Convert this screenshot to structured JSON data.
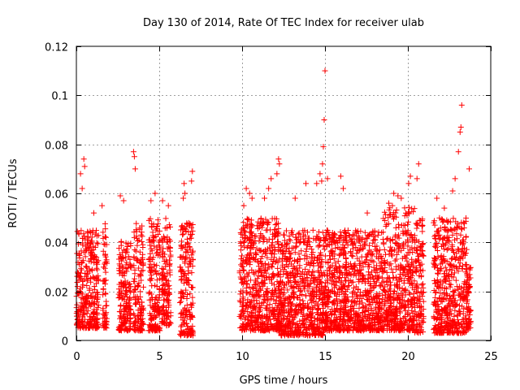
{
  "chart_data": {
    "type": "scatter",
    "title": "Day 130 of 2014, Rate Of TEC Index for receiver ulab",
    "xlabel": "GPS time / hours",
    "ylabel": "ROTI / TECUs",
    "xlim": [
      0,
      25
    ],
    "ylim": [
      0,
      0.12
    ],
    "x_ticks": [
      0,
      5,
      10,
      15,
      20,
      25
    ],
    "x_tick_labels": [
      "0",
      "5",
      "10",
      "15",
      "20",
      "25"
    ],
    "y_ticks": [
      0,
      0.02,
      0.04,
      0.06,
      0.08,
      0.1,
      0.12
    ],
    "y_tick_labels": [
      "0",
      "0.02",
      "0.04",
      "0.06",
      "0.08",
      "0.1",
      "0.12"
    ],
    "grid": true,
    "marker": "+",
    "series_color": "#ff0000",
    "series": [
      {
        "name": "ROTI",
        "segments": [
          {
            "x_start": 0.0,
            "x_end": 1.35,
            "typical_max": 0.045,
            "min": 0.005
          },
          {
            "x_start": 1.6,
            "x_end": 1.85,
            "typical_max": 0.05,
            "min": 0.005
          },
          {
            "x_start": 2.55,
            "x_end": 3.3,
            "typical_max": 0.042,
            "min": 0.004
          },
          {
            "x_start": 3.45,
            "x_end": 4.05,
            "typical_max": 0.048,
            "min": 0.004
          },
          {
            "x_start": 4.35,
            "x_end": 5.05,
            "typical_max": 0.05,
            "min": 0.004
          },
          {
            "x_start": 5.15,
            "x_end": 5.7,
            "typical_max": 0.05,
            "min": 0.006
          },
          {
            "x_start": 6.25,
            "x_end": 7.05,
            "typical_max": 0.048,
            "min": 0.002
          },
          {
            "x_start": 9.85,
            "x_end": 12.3,
            "typical_max": 0.05,
            "min": 0.004
          },
          {
            "x_start": 12.3,
            "x_end": 15.0,
            "typical_max": 0.045,
            "min": 0.002
          },
          {
            "x_start": 15.0,
            "x_end": 18.5,
            "typical_max": 0.045,
            "min": 0.004
          },
          {
            "x_start": 18.5,
            "x_end": 20.4,
            "typical_max": 0.055,
            "min": 0.004
          },
          {
            "x_start": 20.4,
            "x_end": 20.95,
            "typical_max": 0.05,
            "min": 0.003
          },
          {
            "x_start": 21.55,
            "x_end": 23.55,
            "typical_max": 0.05,
            "min": 0.003
          },
          {
            "x_start": 23.55,
            "x_end": 23.8,
            "typical_max": 0.03,
            "min": 0.005
          }
        ],
        "outliers": [
          {
            "x": 0.25,
            "y": 0.068
          },
          {
            "x": 0.45,
            "y": 0.074
          },
          {
            "x": 0.5,
            "y": 0.071
          },
          {
            "x": 0.35,
            "y": 0.062
          },
          {
            "x": 1.05,
            "y": 0.052
          },
          {
            "x": 1.55,
            "y": 0.055
          },
          {
            "x": 2.65,
            "y": 0.059
          },
          {
            "x": 2.85,
            "y": 0.057
          },
          {
            "x": 3.45,
            "y": 0.077
          },
          {
            "x": 3.5,
            "y": 0.075
          },
          {
            "x": 3.55,
            "y": 0.07
          },
          {
            "x": 4.5,
            "y": 0.057
          },
          {
            "x": 4.75,
            "y": 0.06
          },
          {
            "x": 5.2,
            "y": 0.057
          },
          {
            "x": 5.55,
            "y": 0.055
          },
          {
            "x": 6.45,
            "y": 0.058
          },
          {
            "x": 6.5,
            "y": 0.064
          },
          {
            "x": 6.55,
            "y": 0.06
          },
          {
            "x": 7.0,
            "y": 0.069
          },
          {
            "x": 6.95,
            "y": 0.065
          },
          {
            "x": 10.1,
            "y": 0.055
          },
          {
            "x": 10.25,
            "y": 0.062
          },
          {
            "x": 10.45,
            "y": 0.06
          },
          {
            "x": 10.6,
            "y": 0.058
          },
          {
            "x": 11.35,
            "y": 0.058
          },
          {
            "x": 11.6,
            "y": 0.062
          },
          {
            "x": 11.75,
            "y": 0.066
          },
          {
            "x": 12.2,
            "y": 0.074
          },
          {
            "x": 12.25,
            "y": 0.072
          },
          {
            "x": 12.1,
            "y": 0.068
          },
          {
            "x": 13.2,
            "y": 0.058
          },
          {
            "x": 13.85,
            "y": 0.064
          },
          {
            "x": 14.5,
            "y": 0.064
          },
          {
            "x": 14.7,
            "y": 0.068
          },
          {
            "x": 14.8,
            "y": 0.065
          },
          {
            "x": 14.85,
            "y": 0.072
          },
          {
            "x": 14.9,
            "y": 0.079
          },
          {
            "x": 14.95,
            "y": 0.09
          },
          {
            "x": 15.0,
            "y": 0.11
          },
          {
            "x": 15.15,
            "y": 0.066
          },
          {
            "x": 15.95,
            "y": 0.067
          },
          {
            "x": 16.1,
            "y": 0.062
          },
          {
            "x": 17.55,
            "y": 0.052
          },
          {
            "x": 18.85,
            "y": 0.056
          },
          {
            "x": 19.15,
            "y": 0.06
          },
          {
            "x": 19.4,
            "y": 0.059
          },
          {
            "x": 19.6,
            "y": 0.058
          },
          {
            "x": 20.05,
            "y": 0.064
          },
          {
            "x": 20.15,
            "y": 0.067
          },
          {
            "x": 20.55,
            "y": 0.066
          },
          {
            "x": 20.65,
            "y": 0.072
          },
          {
            "x": 21.75,
            "y": 0.058
          },
          {
            "x": 22.2,
            "y": 0.054
          },
          {
            "x": 22.7,
            "y": 0.061
          },
          {
            "x": 22.85,
            "y": 0.066
          },
          {
            "x": 23.05,
            "y": 0.077
          },
          {
            "x": 23.15,
            "y": 0.085
          },
          {
            "x": 23.2,
            "y": 0.087
          },
          {
            "x": 23.25,
            "y": 0.096
          },
          {
            "x": 23.7,
            "y": 0.07
          }
        ]
      }
    ]
  }
}
